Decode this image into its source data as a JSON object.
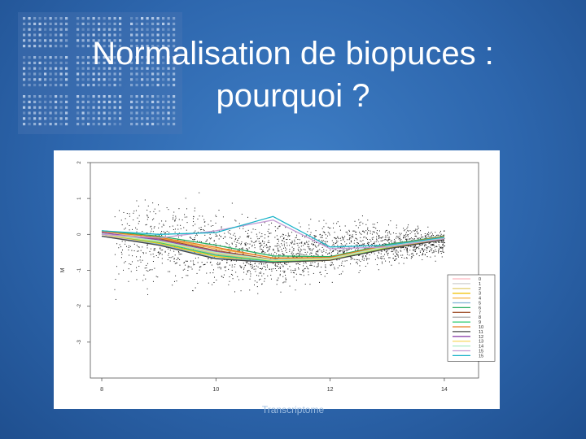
{
  "slide": {
    "title_line1": "Normalisation de biopuces :",
    "title_line2": "pourquoi ?",
    "footer": "Transcriptome"
  },
  "chart_data": {
    "type": "line",
    "title": "",
    "xlabel": "",
    "ylabel": "M",
    "xlim": [
      7.8,
      14.6
    ],
    "ylim": [
      -4.0,
      2.0
    ],
    "x_ticks": [
      8,
      10,
      12,
      14
    ],
    "y_ticks": [
      2,
      1,
      0,
      -1,
      -2,
      -3
    ],
    "grid": false,
    "legend_position": "bottom-right",
    "background_scatter": "dense black points (raw M vs A values), not individually digitized",
    "series": [
      {
        "name": "0",
        "color": "#ffb6c1",
        "x": [
          8.0,
          9.0,
          10.0,
          11.0,
          12.0,
          13.0,
          14.0
        ],
        "y": [
          0.0,
          -0.3,
          -0.55,
          -0.75,
          -0.7,
          -0.35,
          -0.1
        ]
      },
      {
        "name": "1",
        "color": "#cfcfcf",
        "x": [
          8.0,
          9.0,
          10.0,
          11.0,
          12.0,
          13.0,
          14.0
        ],
        "y": [
          0.05,
          -0.2,
          -0.6,
          -0.72,
          -0.68,
          -0.3,
          -0.05
        ]
      },
      {
        "name": "2",
        "color": "#e6d27a",
        "x": [
          8.0,
          9.0,
          10.0,
          11.0,
          12.0,
          13.0,
          14.0
        ],
        "y": [
          0.1,
          -0.15,
          -0.5,
          -0.7,
          -0.65,
          -0.32,
          -0.15
        ]
      },
      {
        "name": "3",
        "color": "#f1c40f",
        "x": [
          8.0,
          9.0,
          10.0,
          11.0,
          12.0,
          13.0,
          14.0
        ],
        "y": [
          0.0,
          -0.25,
          -0.62,
          -0.78,
          -0.72,
          -0.38,
          -0.12
        ]
      },
      {
        "name": "4",
        "color": "#f5b041",
        "x": [
          8.0,
          9.0,
          10.0,
          11.0,
          12.0,
          13.0,
          14.0
        ],
        "y": [
          0.0,
          -0.1,
          -0.4,
          -0.65,
          -0.66,
          -0.3,
          -0.08
        ]
      },
      {
        "name": "5",
        "color": "#7fb3d5",
        "x": [
          8.0,
          9.0,
          10.0,
          11.0,
          12.0,
          13.0,
          14.0
        ],
        "y": [
          -0.05,
          -0.28,
          -0.66,
          -0.76,
          -0.7,
          -0.35,
          -0.1
        ]
      },
      {
        "name": "6",
        "color": "#27ae60",
        "x": [
          8.0,
          9.0,
          10.0,
          11.0,
          12.0,
          13.0,
          14.0
        ],
        "y": [
          0.1,
          -0.05,
          -0.3,
          -0.6,
          -0.62,
          -0.28,
          -0.05
        ]
      },
      {
        "name": "7",
        "color": "#a0522d",
        "x": [
          8.0,
          9.0,
          10.0,
          11.0,
          12.0,
          13.0,
          14.0
        ],
        "y": [
          0.0,
          -0.12,
          -0.45,
          -0.7,
          -0.68,
          -0.33,
          -0.1
        ]
      },
      {
        "name": "8",
        "color": "#b0b0b0",
        "x": [
          8.0,
          9.0,
          10.0,
          11.0,
          12.0,
          13.0,
          14.0
        ],
        "y": [
          0.05,
          -0.18,
          -0.55,
          -0.74,
          -0.69,
          -0.34,
          -0.12
        ]
      },
      {
        "name": "9",
        "color": "#2ecc71",
        "x": [
          8.0,
          9.0,
          10.0,
          11.0,
          12.0,
          13.0,
          14.0
        ],
        "y": [
          0.0,
          -0.22,
          -0.58,
          -0.75,
          -0.7,
          -0.36,
          -0.1
        ]
      },
      {
        "name": "10",
        "color": "#e67e22",
        "x": [
          8.0,
          9.0,
          10.0,
          11.0,
          12.0,
          13.0,
          14.0
        ],
        "y": [
          0.08,
          -0.08,
          -0.36,
          -0.66,
          -0.64,
          -0.3,
          -0.06
        ]
      },
      {
        "name": "11",
        "color": "#444444",
        "x": [
          8.0,
          9.0,
          10.0,
          11.0,
          12.0,
          13.0,
          14.0
        ],
        "y": [
          -0.05,
          -0.3,
          -0.68,
          -0.78,
          -0.72,
          -0.4,
          -0.15
        ]
      },
      {
        "name": "12",
        "color": "#8e44ad",
        "x": [
          8.0,
          9.0,
          10.0,
          11.0,
          12.0,
          13.0,
          14.0
        ],
        "y": [
          0.05,
          -0.15,
          -0.48,
          -0.72,
          -0.68,
          -0.34,
          -0.1
        ]
      },
      {
        "name": "13",
        "color": "#f7dc6f",
        "x": [
          8.0,
          9.0,
          10.0,
          11.0,
          12.0,
          13.0,
          14.0
        ],
        "y": [
          0.0,
          -0.2,
          -0.52,
          -0.73,
          -0.69,
          -0.35,
          -0.11
        ]
      },
      {
        "name": "14",
        "color": "#abebc6",
        "x": [
          8.0,
          9.0,
          10.0,
          11.0,
          12.0,
          13.0,
          14.0
        ],
        "y": [
          0.02,
          -0.18,
          -0.5,
          -0.71,
          -0.67,
          -0.33,
          -0.1
        ]
      },
      {
        "name": "15",
        "color": "#c39bd3",
        "x": [
          8.0,
          9.0,
          10.0,
          11.0,
          12.0,
          13.0,
          14.0
        ],
        "y": [
          0.0,
          -0.1,
          0.1,
          0.4,
          -0.4,
          -0.35,
          -0.12
        ]
      },
      {
        "name": "15",
        "color": "#1ab3c8",
        "x": [
          8.0,
          9.0,
          10.0,
          11.0,
          12.0,
          13.0,
          14.0
        ],
        "y": [
          0.1,
          0.0,
          0.05,
          0.5,
          -0.35,
          -0.3,
          -0.08
        ]
      }
    ]
  }
}
